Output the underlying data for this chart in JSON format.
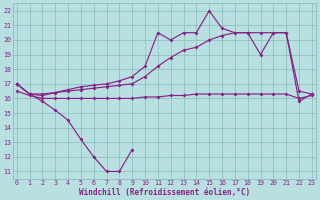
{
  "x_full": [
    0,
    1,
    2,
    3,
    4,
    5,
    6,
    7,
    8,
    9,
    10,
    11,
    12,
    13,
    14,
    15,
    16,
    17,
    18,
    19,
    20,
    21,
    22,
    23
  ],
  "line1_x": [
    0,
    1,
    2,
    3,
    4,
    5,
    6,
    7,
    8,
    9
  ],
  "line1_y": [
    17.0,
    16.3,
    15.8,
    15.2,
    14.5,
    13.2,
    12.0,
    11.0,
    11.0,
    12.5
  ],
  "line2_x": [
    0,
    1,
    2,
    3,
    4,
    5,
    6,
    7,
    8,
    9,
    10,
    11,
    12,
    13,
    14,
    15,
    16,
    17,
    18,
    19,
    20,
    21,
    22,
    23
  ],
  "line2_y": [
    16.5,
    16.2,
    16.0,
    16.0,
    16.0,
    16.0,
    16.0,
    16.0,
    16.0,
    16.0,
    16.1,
    16.1,
    16.2,
    16.2,
    16.3,
    16.3,
    16.3,
    16.3,
    16.3,
    16.3,
    16.3,
    16.3,
    16.0,
    16.2
  ],
  "line3_x": [
    0,
    1,
    2,
    3,
    4,
    5,
    6,
    7,
    8,
    9,
    10,
    11,
    12,
    13,
    14,
    15,
    16,
    17,
    18,
    19,
    20,
    21,
    22,
    23
  ],
  "line3_y": [
    17.0,
    16.3,
    16.3,
    16.4,
    16.5,
    16.6,
    16.7,
    16.8,
    16.9,
    17.0,
    17.5,
    18.2,
    18.8,
    19.3,
    19.5,
    20.0,
    20.3,
    20.5,
    20.5,
    19.0,
    20.5,
    20.5,
    15.8,
    16.3
  ],
  "line4_x": [
    0,
    1,
    2,
    3,
    4,
    5,
    6,
    7,
    8,
    9,
    10,
    11,
    12,
    13,
    14,
    15,
    16,
    17,
    18,
    19,
    20,
    21,
    22,
    23
  ],
  "line4_y": [
    17.0,
    16.3,
    16.2,
    16.4,
    16.6,
    16.8,
    16.9,
    17.0,
    17.2,
    17.5,
    18.2,
    20.5,
    20.0,
    20.5,
    20.5,
    22.0,
    20.8,
    20.5,
    20.5,
    20.5,
    20.5,
    20.5,
    16.5,
    16.3
  ],
  "bg_color": "#b8e0e0",
  "grid_color": "#8bbaba",
  "line_color": "#882288",
  "xlabel": "Windchill (Refroidissement éolien,°C)",
  "xlim_left": -0.3,
  "xlim_right": 23.3,
  "ylim_bottom": 10.5,
  "ylim_top": 22.5,
  "yticks": [
    11,
    12,
    13,
    14,
    15,
    16,
    17,
    18,
    19,
    20,
    21,
    22
  ],
  "xticks": [
    0,
    1,
    2,
    3,
    4,
    5,
    6,
    7,
    8,
    9,
    10,
    11,
    12,
    13,
    14,
    15,
    16,
    17,
    18,
    19,
    20,
    21,
    22,
    23
  ],
  "lw": 0.85,
  "ms": 2.0
}
